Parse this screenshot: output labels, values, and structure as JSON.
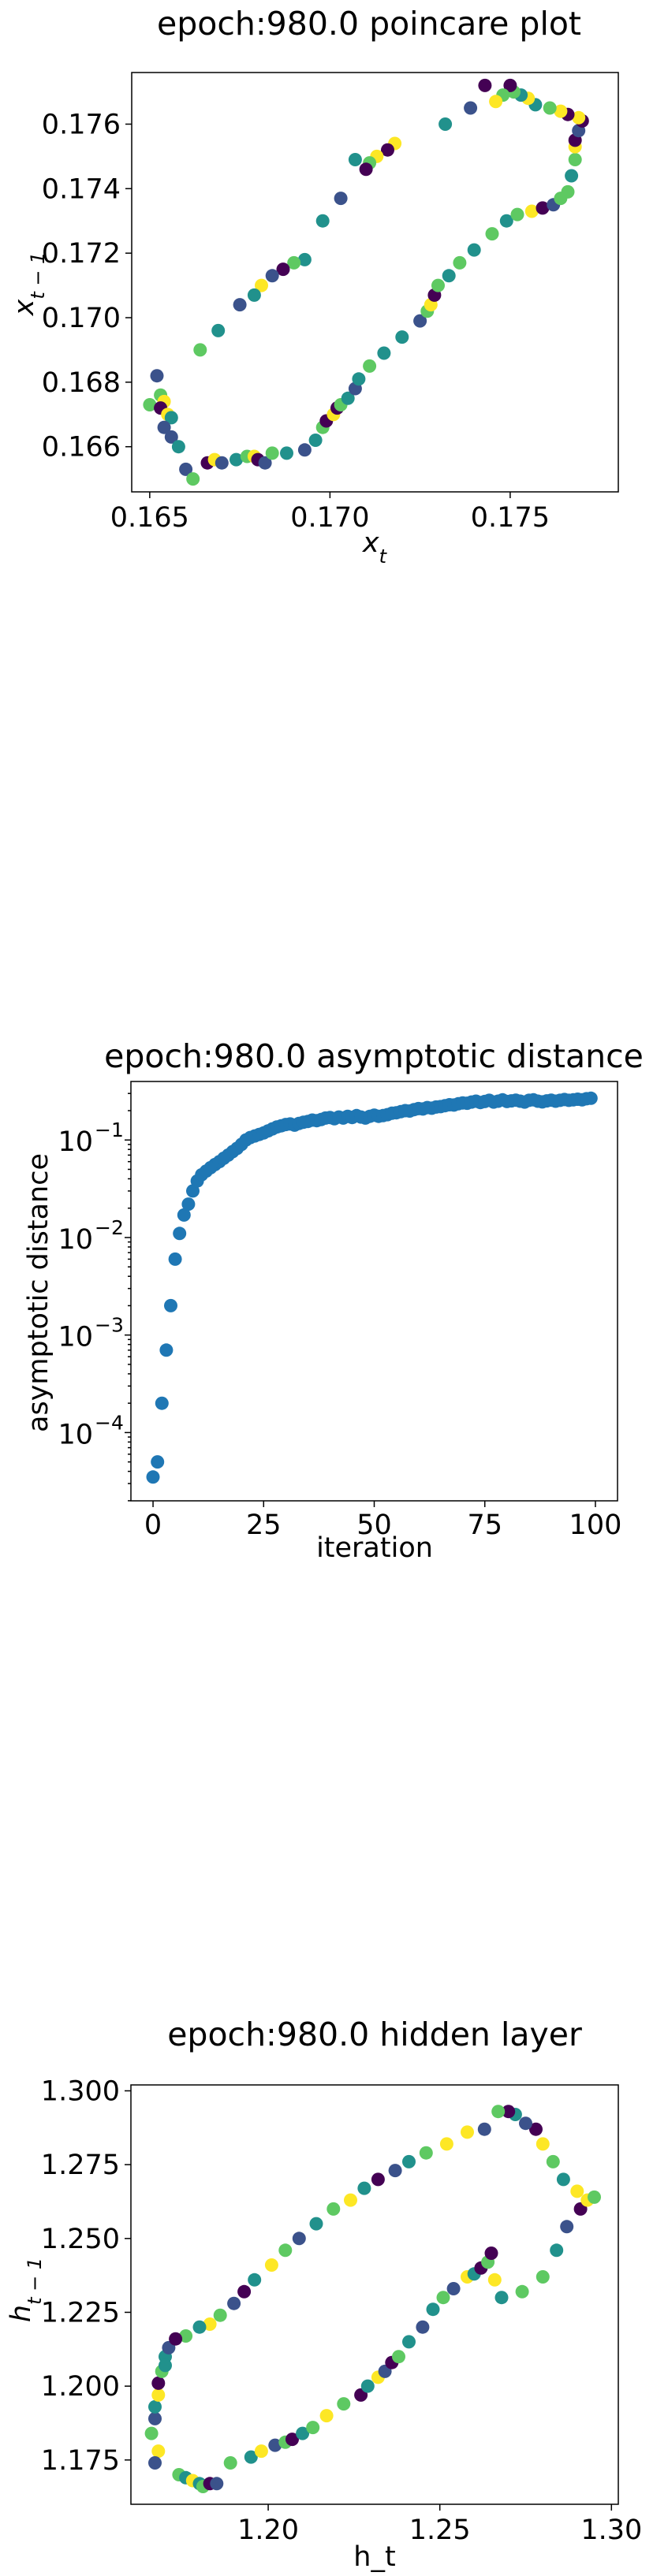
{
  "colors": {
    "viridis": [
      "#440154",
      "#3b528b",
      "#21918c",
      "#5ec962",
      "#fde725"
    ],
    "series": "#1f77b4",
    "axis": "#000000"
  },
  "chart_data": [
    {
      "type": "scatter",
      "title": "epoch:980.0 poincare plot",
      "xlabel": "x_t",
      "ylabel": "x_{t-1}",
      "xlim": [
        0.1645,
        0.178
      ],
      "ylim": [
        0.1646,
        0.1776
      ],
      "xticks": [
        0.165,
        0.17,
        0.175
      ],
      "xtick_labels": [
        "0.165",
        "0.170",
        "0.175"
      ],
      "yticks": [
        0.166,
        0.168,
        0.17,
        0.172,
        0.174,
        0.176
      ],
      "ytick_labels": [
        "0.166",
        "0.168",
        "0.170",
        "0.172",
        "0.174",
        "0.176"
      ],
      "colormap": "viridis",
      "points": [
        [
          0.165,
          0.1673,
          3
        ],
        [
          0.1652,
          0.1682,
          1
        ],
        [
          0.1653,
          0.1676,
          3
        ],
        [
          0.1654,
          0.1674,
          4
        ],
        [
          0.1653,
          0.1672,
          0
        ],
        [
          0.1655,
          0.167,
          4
        ],
        [
          0.1656,
          0.1669,
          2
        ],
        [
          0.1654,
          0.1666,
          1
        ],
        [
          0.1656,
          0.1663,
          1
        ],
        [
          0.1658,
          0.166,
          2
        ],
        [
          0.166,
          0.1653,
          1
        ],
        [
          0.1662,
          0.165,
          3
        ],
        [
          0.1666,
          0.1655,
          0
        ],
        [
          0.1668,
          0.1656,
          4
        ],
        [
          0.167,
          0.1655,
          1
        ],
        [
          0.1674,
          0.1656,
          2
        ],
        [
          0.1677,
          0.1657,
          3
        ],
        [
          0.1679,
          0.1657,
          4
        ],
        [
          0.168,
          0.1656,
          0
        ],
        [
          0.1682,
          0.1655,
          1
        ],
        [
          0.1684,
          0.1658,
          3
        ],
        [
          0.1688,
          0.1658,
          2
        ],
        [
          0.1693,
          0.1659,
          1
        ],
        [
          0.1696,
          0.1662,
          2
        ],
        [
          0.1698,
          0.1666,
          3
        ],
        [
          0.1699,
          0.1668,
          0
        ],
        [
          0.1701,
          0.167,
          4
        ],
        [
          0.1702,
          0.1672,
          0
        ],
        [
          0.1703,
          0.1673,
          3
        ],
        [
          0.1705,
          0.1675,
          2
        ],
        [
          0.1707,
          0.1678,
          1
        ],
        [
          0.1708,
          0.1681,
          2
        ],
        [
          0.1711,
          0.1685,
          3
        ],
        [
          0.1715,
          0.1689,
          2
        ],
        [
          0.172,
          0.1694,
          2
        ],
        [
          0.1725,
          0.1699,
          1
        ],
        [
          0.1727,
          0.1702,
          3
        ],
        [
          0.1728,
          0.1704,
          4
        ],
        [
          0.1729,
          0.1707,
          0
        ],
        [
          0.173,
          0.171,
          3
        ],
        [
          0.1733,
          0.1713,
          2
        ],
        [
          0.1736,
          0.1717,
          3
        ],
        [
          0.174,
          0.1721,
          2
        ],
        [
          0.1745,
          0.1726,
          3
        ],
        [
          0.1749,
          0.173,
          2
        ],
        [
          0.1752,
          0.1732,
          3
        ],
        [
          0.1756,
          0.1733,
          4
        ],
        [
          0.1759,
          0.1734,
          0
        ],
        [
          0.1762,
          0.1735,
          1
        ],
        [
          0.1764,
          0.1737,
          3
        ],
        [
          0.1766,
          0.1739,
          3
        ],
        [
          0.1767,
          0.1744,
          2
        ],
        [
          0.1768,
          0.1749,
          3
        ],
        [
          0.1768,
          0.1753,
          4
        ],
        [
          0.1768,
          0.1755,
          0
        ],
        [
          0.1769,
          0.1758,
          1
        ],
        [
          0.177,
          0.1761,
          0
        ],
        [
          0.1769,
          0.1762,
          4
        ],
        [
          0.1766,
          0.1763,
          0
        ],
        [
          0.1764,
          0.1764,
          4
        ],
        [
          0.1761,
          0.1765,
          3
        ],
        [
          0.1757,
          0.1766,
          2
        ],
        [
          0.1755,
          0.1768,
          4
        ],
        [
          0.1753,
          0.1769,
          2
        ],
        [
          0.1751,
          0.177,
          3
        ],
        [
          0.175,
          0.1772,
          0
        ],
        [
          0.1748,
          0.1769,
          3
        ],
        [
          0.1746,
          0.1767,
          4
        ],
        [
          0.1743,
          0.1772,
          0
        ],
        [
          0.1739,
          0.1765,
          1
        ],
        [
          0.1732,
          0.176,
          2
        ],
        [
          0.1718,
          0.1754,
          4
        ],
        [
          0.1716,
          0.1752,
          0
        ],
        [
          0.1713,
          0.175,
          4
        ],
        [
          0.1711,
          0.1748,
          3
        ],
        [
          0.171,
          0.1746,
          0
        ],
        [
          0.1707,
          0.1749,
          2
        ],
        [
          0.1703,
          0.1737,
          1
        ],
        [
          0.1698,
          0.173,
          2
        ],
        [
          0.1693,
          0.1718,
          2
        ],
        [
          0.169,
          0.1717,
          3
        ],
        [
          0.1687,
          0.1715,
          0
        ],
        [
          0.1684,
          0.1713,
          1
        ],
        [
          0.1681,
          0.171,
          4
        ],
        [
          0.1679,
          0.1707,
          2
        ],
        [
          0.1675,
          0.1704,
          1
        ],
        [
          0.1669,
          0.1696,
          2
        ],
        [
          0.1664,
          0.169,
          3
        ]
      ]
    },
    {
      "type": "scatter",
      "title": "epoch:980.0 asymptotic distance",
      "xlabel": "iteration",
      "ylabel": "asymptotic distance",
      "xlim": [
        -5,
        105
      ],
      "ylog": true,
      "ylim_log10": [
        -4.7,
        -0.4
      ],
      "xticks": [
        0,
        25,
        50,
        75,
        100
      ],
      "xtick_labels": [
        "0",
        "25",
        "50",
        "75",
        "100"
      ],
      "yticks_log10": [
        -4,
        -3,
        -2,
        -1
      ],
      "ytick_mantissa": [
        "10",
        "10",
        "10",
        "10"
      ],
      "ytick_exponents": [
        "−4",
        "−3",
        "−2",
        "−1"
      ],
      "x": [
        0,
        1,
        2,
        3,
        4,
        5,
        6,
        7,
        8,
        9,
        10,
        11,
        12,
        13,
        14,
        15,
        16,
        17,
        18,
        19,
        20,
        21,
        22,
        23,
        24,
        25,
        26,
        27,
        28,
        29,
        30,
        31,
        32,
        33,
        34,
        35,
        36,
        37,
        38,
        39,
        40,
        41,
        42,
        43,
        44,
        45,
        46,
        47,
        48,
        49,
        50,
        51,
        52,
        53,
        54,
        55,
        56,
        57,
        58,
        59,
        60,
        61,
        62,
        63,
        64,
        65,
        66,
        67,
        68,
        69,
        70,
        71,
        72,
        73,
        74,
        75,
        76,
        77,
        78,
        79,
        80,
        81,
        82,
        83,
        84,
        85,
        86,
        87,
        88,
        89,
        90,
        91,
        92,
        93,
        94,
        95,
        96,
        97,
        98,
        99
      ],
      "y": [
        3.5e-05,
        5e-05,
        0.0002,
        0.0007,
        0.002,
        0.006,
        0.011,
        0.017,
        0.022,
        0.03,
        0.038,
        0.044,
        0.048,
        0.052,
        0.056,
        0.06,
        0.065,
        0.07,
        0.076,
        0.082,
        0.09,
        0.1,
        0.106,
        0.11,
        0.114,
        0.118,
        0.124,
        0.13,
        0.136,
        0.14,
        0.144,
        0.146,
        0.142,
        0.148,
        0.152,
        0.155,
        0.16,
        0.158,
        0.162,
        0.168,
        0.17,
        0.165,
        0.172,
        0.168,
        0.175,
        0.17,
        0.178,
        0.172,
        0.168,
        0.175,
        0.18,
        0.175,
        0.178,
        0.182,
        0.188,
        0.19,
        0.195,
        0.2,
        0.198,
        0.205,
        0.21,
        0.208,
        0.215,
        0.212,
        0.218,
        0.22,
        0.225,
        0.23,
        0.228,
        0.235,
        0.24,
        0.238,
        0.245,
        0.25,
        0.242,
        0.248,
        0.255,
        0.245,
        0.25,
        0.258,
        0.248,
        0.252,
        0.256,
        0.25,
        0.245,
        0.255,
        0.258,
        0.25,
        0.246,
        0.252,
        0.256,
        0.25,
        0.255,
        0.26,
        0.255,
        0.258,
        0.262,
        0.258,
        0.265,
        0.268
      ]
    },
    {
      "type": "scatter",
      "title": "epoch:980.0 hidden layer",
      "xlabel": "h_t",
      "ylabel": "h_{t-1}",
      "xlim": [
        1.16,
        1.302
      ],
      "ylim": [
        1.16,
        1.302
      ],
      "xticks": [
        1.2,
        1.25,
        1.3
      ],
      "xtick_labels": [
        "1.20",
        "1.25",
        "1.30"
      ],
      "yticks": [
        1.175,
        1.2,
        1.225,
        1.25,
        1.275,
        1.3
      ],
      "ytick_labels": [
        "1.175",
        "1.200",
        "1.225",
        "1.250",
        "1.275",
        "1.300"
      ],
      "colormap": "viridis",
      "points": [
        [
          1.166,
          1.184,
          3
        ],
        [
          1.167,
          1.189,
          1
        ],
        [
          1.167,
          1.193,
          2
        ],
        [
          1.168,
          1.197,
          4
        ],
        [
          1.168,
          1.201,
          0
        ],
        [
          1.169,
          1.205,
          3
        ],
        [
          1.17,
          1.21,
          2
        ],
        [
          1.171,
          1.213,
          1
        ],
        [
          1.17,
          1.207,
          2
        ],
        [
          1.168,
          1.178,
          4
        ],
        [
          1.167,
          1.174,
          1
        ],
        [
          1.174,
          1.17,
          3
        ],
        [
          1.176,
          1.169,
          2
        ],
        [
          1.178,
          1.168,
          4
        ],
        [
          1.18,
          1.167,
          2
        ],
        [
          1.181,
          1.166,
          3
        ],
        [
          1.183,
          1.167,
          0
        ],
        [
          1.185,
          1.167,
          1
        ],
        [
          1.189,
          1.174,
          3
        ],
        [
          1.195,
          1.176,
          2
        ],
        [
          1.198,
          1.178,
          4
        ],
        [
          1.202,
          1.18,
          1
        ],
        [
          1.205,
          1.181,
          3
        ],
        [
          1.207,
          1.182,
          0
        ],
        [
          1.21,
          1.184,
          2
        ],
        [
          1.213,
          1.186,
          3
        ],
        [
          1.217,
          1.19,
          4
        ],
        [
          1.222,
          1.194,
          3
        ],
        [
          1.227,
          1.197,
          0
        ],
        [
          1.229,
          1.2,
          2
        ],
        [
          1.232,
          1.203,
          4
        ],
        [
          1.234,
          1.205,
          1
        ],
        [
          1.236,
          1.208,
          0
        ],
        [
          1.238,
          1.21,
          3
        ],
        [
          1.241,
          1.215,
          2
        ],
        [
          1.245,
          1.22,
          1
        ],
        [
          1.248,
          1.226,
          2
        ],
        [
          1.251,
          1.23,
          3
        ],
        [
          1.254,
          1.233,
          1
        ],
        [
          1.258,
          1.237,
          4
        ],
        [
          1.26,
          1.238,
          2
        ],
        [
          1.262,
          1.24,
          0
        ],
        [
          1.264,
          1.242,
          3
        ],
        [
          1.265,
          1.245,
          0
        ],
        [
          1.266,
          1.236,
          4
        ],
        [
          1.268,
          1.23,
          2
        ],
        [
          1.274,
          1.232,
          3
        ],
        [
          1.28,
          1.237,
          3
        ],
        [
          1.284,
          1.246,
          2
        ],
        [
          1.287,
          1.254,
          1
        ],
        [
          1.291,
          1.26,
          0
        ],
        [
          1.293,
          1.263,
          4
        ],
        [
          1.295,
          1.264,
          3
        ],
        [
          1.29,
          1.266,
          4
        ],
        [
          1.286,
          1.27,
          2
        ],
        [
          1.283,
          1.276,
          3
        ],
        [
          1.28,
          1.282,
          4
        ],
        [
          1.278,
          1.287,
          0
        ],
        [
          1.275,
          1.289,
          1
        ],
        [
          1.272,
          1.292,
          2
        ],
        [
          1.27,
          1.293,
          0
        ],
        [
          1.267,
          1.293,
          3
        ],
        [
          1.263,
          1.287,
          1
        ],
        [
          1.258,
          1.286,
          4
        ],
        [
          1.252,
          1.282,
          4
        ],
        [
          1.246,
          1.279,
          3
        ],
        [
          1.241,
          1.276,
          2
        ],
        [
          1.237,
          1.273,
          1
        ],
        [
          1.232,
          1.27,
          0
        ],
        [
          1.228,
          1.267,
          2
        ],
        [
          1.224,
          1.263,
          4
        ],
        [
          1.219,
          1.26,
          3
        ],
        [
          1.214,
          1.255,
          2
        ],
        [
          1.209,
          1.25,
          1
        ],
        [
          1.205,
          1.246,
          3
        ],
        [
          1.201,
          1.241,
          4
        ],
        [
          1.196,
          1.236,
          2
        ],
        [
          1.193,
          1.232,
          0
        ],
        [
          1.19,
          1.228,
          1
        ],
        [
          1.186,
          1.224,
          3
        ],
        [
          1.183,
          1.221,
          4
        ],
        [
          1.18,
          1.22,
          2
        ],
        [
          1.176,
          1.217,
          3
        ],
        [
          1.173,
          1.216,
          0
        ]
      ]
    }
  ]
}
